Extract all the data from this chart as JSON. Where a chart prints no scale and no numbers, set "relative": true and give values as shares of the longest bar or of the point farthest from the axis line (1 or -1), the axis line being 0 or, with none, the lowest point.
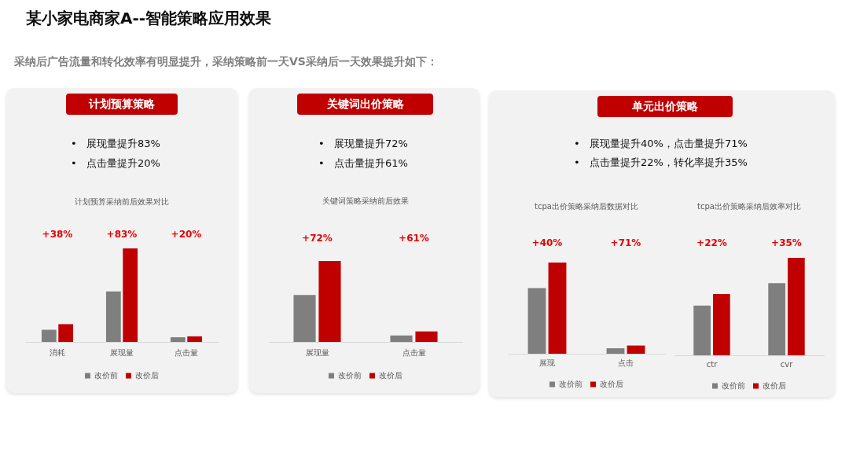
{
  "chart_data": [
    {
      "type": "other",
      "title": "某小家电商家A--智能策略应用效果",
      "subtitle": "采纳后广告流量和转化效率有明显提升，采纳策略前一天VS采纳后一天效果提升如下："
    },
    {
      "type": "other",
      "title": "计划预算策略",
      "annotations": [
        "•\t展现量提升83%",
        "•\t点击量提升20%"
      ]
    },
    {
      "type": "bar",
      "title": "计划预算采纳前后效果对比",
      "categories": [
        "消耗",
        "展现量",
        "点击量"
      ],
      "series": [
        {
          "name": "改价前",
          "color": "#7f7f7f",
          "values": [
            0.13,
            0.54,
            0.05
          ]
        },
        {
          "name": "改价后",
          "color": "#c00000",
          "values": [
            0.19,
            1,
            0.06
          ]
        }
      ],
      "relative": true,
      "legend": "bottom",
      "annotations": [
        "+38%",
        "+83%",
        "+20%"
      ]
    },
    {
      "type": "other",
      "title": "关键词出价策略",
      "annotations": [
        "•\t展现量提升72%",
        "•\t点击量提升61%"
      ]
    },
    {
      "type": "bar",
      "title": "关键词策略采纳前后效果",
      "categories": [
        "展现量",
        "点击量"
      ],
      "series": [
        {
          "name": "改价前",
          "color": "#7f7f7f",
          "values": [
            0.58,
            0.08
          ]
        },
        {
          "name": "改价后",
          "color": "#c00000",
          "values": [
            1,
            0.13
          ]
        }
      ],
      "relative": true,
      "legend": "bottom",
      "annotations": [
        "+72%",
        "+61%"
      ]
    },
    {
      "type": "other",
      "title": "单元出价策略",
      "annotations": [
        "•\t展现量提升40%，点击量提升71%",
        "•\t点击量提升22%，转化率提升35%"
      ]
    },
    {
      "type": "bar",
      "title": "tcpa出价策略采纳后数据对比",
      "categories": [
        "展现",
        "点击"
      ],
      "series": [
        {
          "name": "改价前",
          "color": "#7f7f7f",
          "values": [
            0.72,
            0.06
          ]
        },
        {
          "name": "改价后",
          "color": "#c00000",
          "values": [
            1,
            0.09
          ]
        }
      ],
      "relative": true,
      "legend": "bottom",
      "annotations": [
        "+40%",
        "+71%"
      ]
    },
    {
      "type": "bar",
      "title": "tcpa出价策略采纳后效率对比",
      "categories": [
        "ctr",
        "cvr"
      ],
      "series": [
        {
          "name": "改价前",
          "color": "#7f7f7f",
          "values": [
            0.51,
            0.74
          ]
        },
        {
          "name": "改价后",
          "color": "#c00000",
          "values": [
            0.63,
            1
          ]
        }
      ],
      "relative": true,
      "legend": "bottom",
      "annotations": [
        "+22%",
        "+35%"
      ]
    }
  ]
}
